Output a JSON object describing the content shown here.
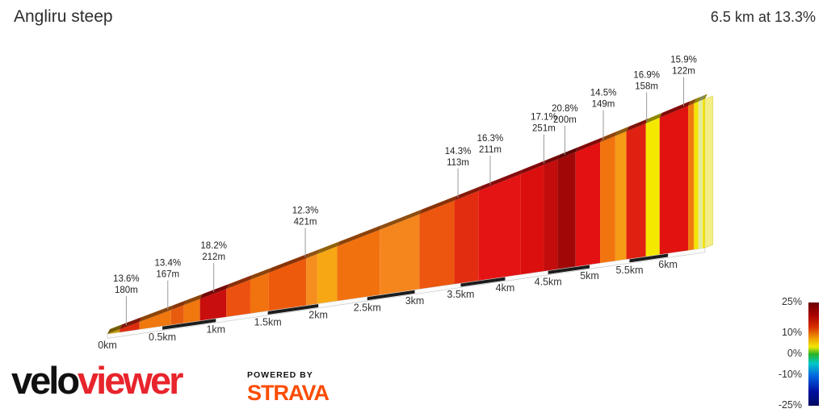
{
  "header": {
    "title": "Angliru steep",
    "summary": "6.5 km at 13.3%"
  },
  "chart_data": {
    "type": "area",
    "title": "Angliru steep",
    "subtitle": "6.5 km at 13.3%",
    "total_distance_km": 6.5,
    "avg_gradient_pct": 13.3,
    "x_unit": "km",
    "km_ticks": [
      0,
      0.5,
      1,
      1.5,
      2,
      2.5,
      3,
      3.5,
      4,
      4.5,
      5,
      5.5,
      6
    ],
    "km_tick_labels": [
      "0km",
      "0.5km",
      "1km",
      "1.5km",
      "2km",
      "2.5km",
      "3km",
      "3.5km",
      "4km",
      "4.5km",
      "5km",
      "5.5km",
      "6km"
    ],
    "segments": [
      {
        "from_km": 0.0,
        "to_km": 0.11,
        "gradient_pct": 9.0,
        "color": "#C99F08"
      },
      {
        "from_km": 0.11,
        "to_km": 0.29,
        "gradient_pct": 13.6,
        "color": "#DD2B0E"
      },
      {
        "from_km": 0.29,
        "to_km": 0.58,
        "gradient_pct": 13.4,
        "color": "#F1770F"
      },
      {
        "from_km": 0.58,
        "to_km": 0.7,
        "gradient_pct": 12.5,
        "color": "#E85C0F"
      },
      {
        "from_km": 0.7,
        "to_km": 0.85,
        "gradient_pct": 11.5,
        "color": "#F1770F"
      },
      {
        "from_km": 0.85,
        "to_km": 1.1,
        "gradient_pct": 18.2,
        "color": "#C90E0E"
      },
      {
        "from_km": 1.1,
        "to_km": 1.33,
        "gradient_pct": 13.5,
        "color": "#ED5110"
      },
      {
        "from_km": 1.33,
        "to_km": 1.51,
        "gradient_pct": 11.8,
        "color": "#F1730F"
      },
      {
        "from_km": 1.51,
        "to_km": 1.88,
        "gradient_pct": 12.3,
        "color": "#ED5A0C"
      },
      {
        "from_km": 1.88,
        "to_km": 1.99,
        "gradient_pct": 10.5,
        "color": "#F68E1F"
      },
      {
        "from_km": 1.99,
        "to_km": 2.19,
        "gradient_pct": 10.0,
        "color": "#F7A713"
      },
      {
        "from_km": 2.19,
        "to_km": 2.63,
        "gradient_pct": 11.5,
        "color": "#F1710F"
      },
      {
        "from_km": 2.63,
        "to_km": 3.05,
        "gradient_pct": 10.8,
        "color": "#F5861E"
      },
      {
        "from_km": 3.05,
        "to_km": 3.43,
        "gradient_pct": 12.8,
        "color": "#EC560E"
      },
      {
        "from_km": 3.43,
        "to_km": 3.7,
        "gradient_pct": 14.3,
        "color": "#E32D10"
      },
      {
        "from_km": 3.7,
        "to_km": 4.18,
        "gradient_pct": 16.3,
        "color": "#E51414"
      },
      {
        "from_km": 4.18,
        "to_km": 4.45,
        "gradient_pct": 15.5,
        "color": "#DC0F0F"
      },
      {
        "from_km": 4.45,
        "to_km": 4.61,
        "gradient_pct": 17.1,
        "color": "#C30C0C"
      },
      {
        "from_km": 4.61,
        "to_km": 4.83,
        "gradient_pct": 20.8,
        "color": "#A00808"
      },
      {
        "from_km": 4.83,
        "to_km": 5.13,
        "gradient_pct": 15.2,
        "color": "#E31111"
      },
      {
        "from_km": 5.13,
        "to_km": 5.32,
        "gradient_pct": 11.6,
        "color": "#F1740F"
      },
      {
        "from_km": 5.32,
        "to_km": 5.46,
        "gradient_pct": 10.2,
        "color": "#F69B15"
      },
      {
        "from_km": 5.46,
        "to_km": 5.71,
        "gradient_pct": 16.9,
        "color": "#E02010"
      },
      {
        "from_km": 5.71,
        "to_km": 5.89,
        "gradient_pct": 8.5,
        "color": "#F4E800"
      },
      {
        "from_km": 5.89,
        "to_km": 6.27,
        "gradient_pct": 15.9,
        "color": "#E01310"
      },
      {
        "from_km": 6.27,
        "to_km": 6.35,
        "gradient_pct": 11.0,
        "color": "#F07C10"
      },
      {
        "from_km": 6.35,
        "to_km": 6.41,
        "gradient_pct": 8.0,
        "color": "#F4E400"
      },
      {
        "from_km": 6.41,
        "to_km": 6.47,
        "gradient_pct": 5.5,
        "color": "#E4EB9B"
      },
      {
        "from_km": 6.47,
        "to_km": 6.5,
        "gradient_pct": 8.0,
        "color": "#F4E400"
      }
    ],
    "annotations": [
      {
        "at_km": 0.17,
        "gradient": "13.6%",
        "length": "180m"
      },
      {
        "at_km": 0.55,
        "gradient": "13.4%",
        "length": "167m"
      },
      {
        "at_km": 0.98,
        "gradient": "18.2%",
        "length": "212m"
      },
      {
        "at_km": 1.87,
        "gradient": "12.3%",
        "length": "421m"
      },
      {
        "at_km": 3.47,
        "gradient": "14.3%",
        "length": "113m"
      },
      {
        "at_km": 3.83,
        "gradient": "16.3%",
        "length": "211m"
      },
      {
        "at_km": 4.45,
        "gradient": "17.1%",
        "length": "251m"
      },
      {
        "at_km": 4.7,
        "gradient": "20.8%",
        "length": "200m"
      },
      {
        "at_km": 5.17,
        "gradient": "14.5%",
        "length": "149m"
      },
      {
        "at_km": 5.72,
        "gradient": "16.9%",
        "length": "158m"
      },
      {
        "at_km": 6.21,
        "gradient": "15.9%",
        "length": "122m"
      }
    ],
    "legend": {
      "min_pct": -25,
      "max_pct": 25,
      "tick_labels": [
        "25%",
        "10%",
        "0%",
        "-10%",
        "-25%"
      ],
      "tick_values": [
        25,
        10,
        0,
        -10,
        -25
      ],
      "gradient_stops": [
        [
          "#6B0000",
          0
        ],
        [
          "#A80000",
          12
        ],
        [
          "#D83000",
          24
        ],
        [
          "#F0A000",
          35
        ],
        [
          "#F0E800",
          43
        ],
        [
          "#28B428",
          50
        ],
        [
          "#00C8C8",
          59
        ],
        [
          "#0064E0",
          71
        ],
        [
          "#0010A0",
          86
        ],
        [
          "#000860",
          100
        ]
      ]
    }
  },
  "footer": {
    "brand_black": "velo",
    "brand_red": "viewer",
    "brand_red_color": "#e8242c",
    "powered_by": "POWERED BY",
    "strava": "STRAVA",
    "strava_color": "#FC4C02"
  }
}
